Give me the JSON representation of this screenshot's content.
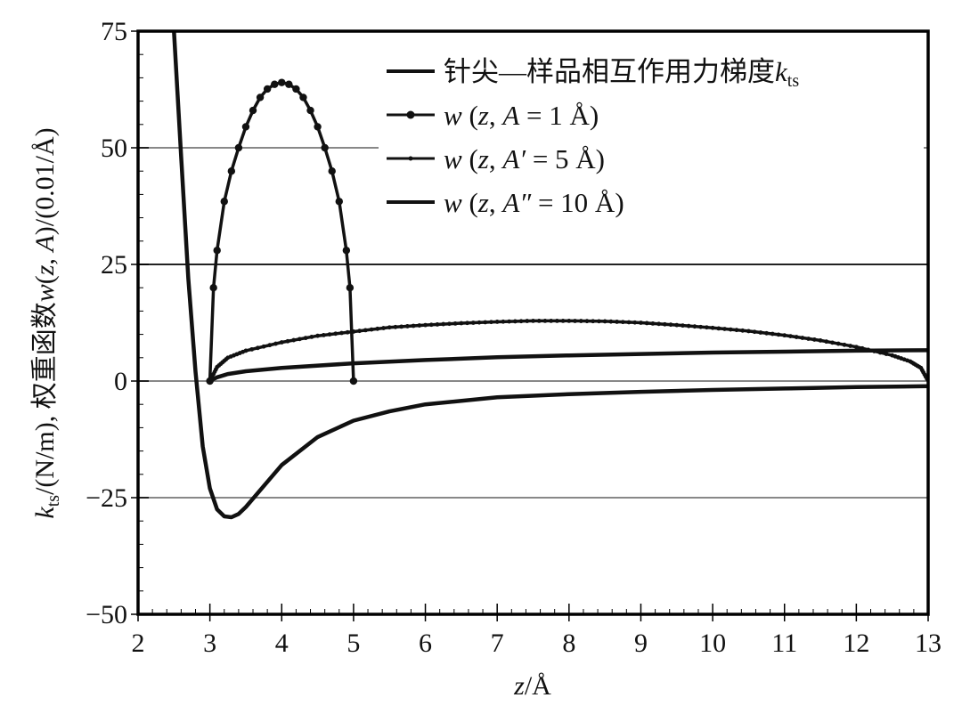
{
  "chart_data": {
    "type": "line",
    "title": "",
    "xlabel": "z/Å",
    "ylabel": "k_ts/(N/m), 权重函数w(z, A)/(0.01/Å)",
    "xlim": [
      2,
      13
    ],
    "ylim": [
      -50,
      75
    ],
    "x_ticks": [
      "2",
      "3",
      "4",
      "5",
      "6",
      "7",
      "8",
      "9",
      "10",
      "11",
      "12",
      "13"
    ],
    "y_ticks": [
      "75",
      "50",
      "25",
      "0",
      "−25",
      "−50"
    ],
    "grid": {
      "horizontal": true,
      "values": [
        50,
        25,
        0,
        -25
      ]
    },
    "legend_position": "upper right (inside)",
    "legend": [
      "针尖—样品相互作用力梯度k_ts",
      "w (z, A = 1 Å)",
      "w (z, A′ = 5 Å)",
      "w (z, A″ = 10 Å)"
    ],
    "series": [
      {
        "name": "针尖—样品相互作用力梯度k_ts",
        "marker": "none",
        "x": [
          2.5,
          2.6,
          2.7,
          2.8,
          2.9,
          3.0,
          3.1,
          3.2,
          3.3,
          3.4,
          3.5,
          3.75,
          4.0,
          4.5,
          5.0,
          5.5,
          6.0,
          7.0,
          8.0,
          9.0,
          10.0,
          11.0,
          12.0,
          13.0
        ],
        "y": [
          75,
          48,
          22,
          2,
          -14,
          -23,
          -27.5,
          -29,
          -29.2,
          -28.5,
          -27,
          -22.5,
          -18,
          -12,
          -8.5,
          -6.5,
          -5,
          -3.5,
          -2.8,
          -2.3,
          -1.9,
          -1.6,
          -1.3,
          -1.1
        ]
      },
      {
        "name": "w (z, A = 1 Å)",
        "marker": "dot",
        "x": [
          3.0,
          3.05,
          3.1,
          3.2,
          3.3,
          3.4,
          3.5,
          3.6,
          3.7,
          3.8,
          3.9,
          4.0,
          4.1,
          4.2,
          4.3,
          4.4,
          4.5,
          4.6,
          4.7,
          4.8,
          4.9,
          4.95,
          5.0
        ],
        "y": [
          0,
          20,
          28,
          38.5,
          45,
          50,
          54.5,
          58,
          60.8,
          62.6,
          63.6,
          64,
          63.6,
          62.6,
          60.8,
          58,
          54.5,
          50,
          45,
          38.5,
          28,
          20,
          0
        ]
      },
      {
        "name": "w (z, A′ = 5 Å)",
        "marker": "small-dot",
        "x": [
          3.0,
          3.1,
          3.25,
          3.5,
          4.0,
          4.5,
          5.0,
          5.5,
          6.0,
          6.5,
          7.0,
          7.5,
          8.0,
          8.5,
          9.0,
          9.5,
          10.0,
          10.5,
          11.0,
          11.5,
          12.0,
          12.5,
          12.75,
          12.9,
          13.0
        ],
        "y": [
          0,
          3,
          5,
          6.5,
          8.3,
          9.7,
          10.6,
          11.5,
          12.0,
          12.4,
          12.7,
          12.9,
          12.9,
          12.8,
          12.5,
          12.0,
          11.4,
          10.7,
          9.8,
          8.7,
          7.3,
          5.5,
          4.2,
          2.8,
          0
        ]
      },
      {
        "name": "w (z, A″ = 10 Å)",
        "marker": "none",
        "x": [
          3.0,
          3.1,
          3.25,
          3.5,
          4.0,
          5.0,
          6.0,
          7.0,
          8.0,
          9.0,
          10.0,
          11.0,
          12.0,
          13.0
        ],
        "y": [
          0,
          0.8,
          1.5,
          2.1,
          2.8,
          3.8,
          4.5,
          5.1,
          5.5,
          5.8,
          6.1,
          6.3,
          6.5,
          6.6
        ]
      }
    ]
  },
  "axes": {
    "x_title_italic": "z",
    "x_title_rest": "/Å",
    "y_title_k": "k",
    "y_title_sub": "ts",
    "y_title_mid": "/(N/m), 权重函数",
    "y_title_w": "w",
    "y_title_paren1": "(",
    "y_title_z": "z",
    "y_title_comma": ", ",
    "y_title_A": "A",
    "y_title_end": ")/(0.01/Å)"
  },
  "legend": {
    "items": [
      {
        "prefix": "针尖—样品相互作用力梯度",
        "italic": "k",
        "sub": "ts"
      },
      {
        "w": "w",
        "open": " (",
        "z": "z",
        "comma": ", ",
        "A": "A",
        "rest": " = 1 Å)"
      },
      {
        "w": "w",
        "open": " (",
        "z": "z",
        "comma": ", ",
        "A": "A′",
        "rest": " = 5 Å)"
      },
      {
        "w": "w",
        "open": " (",
        "z": "z",
        "comma": ", ",
        "A": "A″",
        "rest": " = 10 Å)"
      }
    ]
  },
  "colors": {
    "line": "#111111",
    "grid": "#888888",
    "axis": "#000000",
    "background": "#ffffff"
  }
}
